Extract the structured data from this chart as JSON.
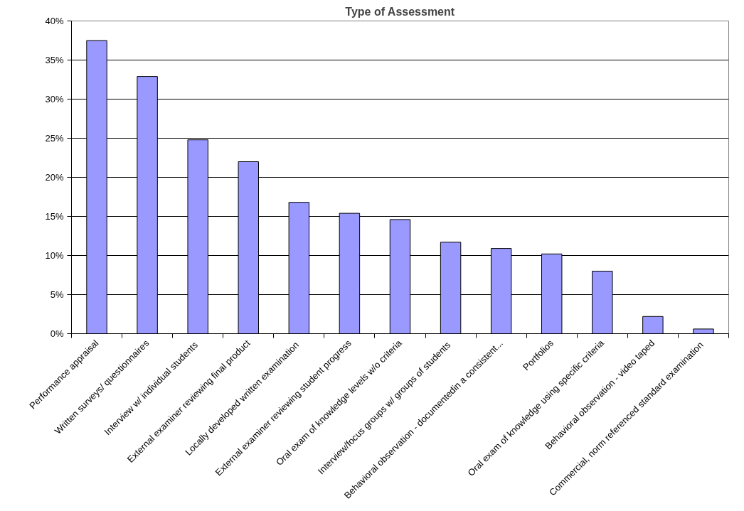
{
  "chart_data": {
    "type": "bar",
    "title": "Type of Assessment",
    "categories": [
      "Performance appraisal",
      "Written surveys/ questionnaires",
      "Interview w/  individual students",
      "External examiner reviewing final product",
      "Locally  developed written examination",
      "External examiner reviewing student progress",
      "Oral exam of knowledge levels w/o criteria",
      "Interview/focus groups w/  groups of students",
      "Behavioral observation - documentedin a consistent...",
      "Portfolios",
      "Oral exam of knowledge using specific criteria",
      "Behavioral observation - video taped",
      "Commercial,  norm referenced standard examination"
    ],
    "values": [
      37.5,
      32.9,
      24.8,
      22.0,
      16.8,
      15.4,
      14.6,
      11.7,
      10.9,
      10.2,
      8.0,
      2.2,
      0.6
    ],
    "color": "#9999ff",
    "ylim": [
      0,
      40
    ],
    "yticks": [
      {
        "value": 0,
        "label": "0%"
      },
      {
        "value": 5,
        "label": "5%"
      },
      {
        "value": 10,
        "label": "10%"
      },
      {
        "value": 15,
        "label": "15%"
      },
      {
        "value": 20,
        "label": "20%"
      },
      {
        "value": 25,
        "label": "25%"
      },
      {
        "value": 30,
        "label": "30%"
      },
      {
        "value": 35,
        "label": "35%"
      },
      {
        "value": 40,
        "label": "40%"
      }
    ],
    "grid": "y"
  }
}
